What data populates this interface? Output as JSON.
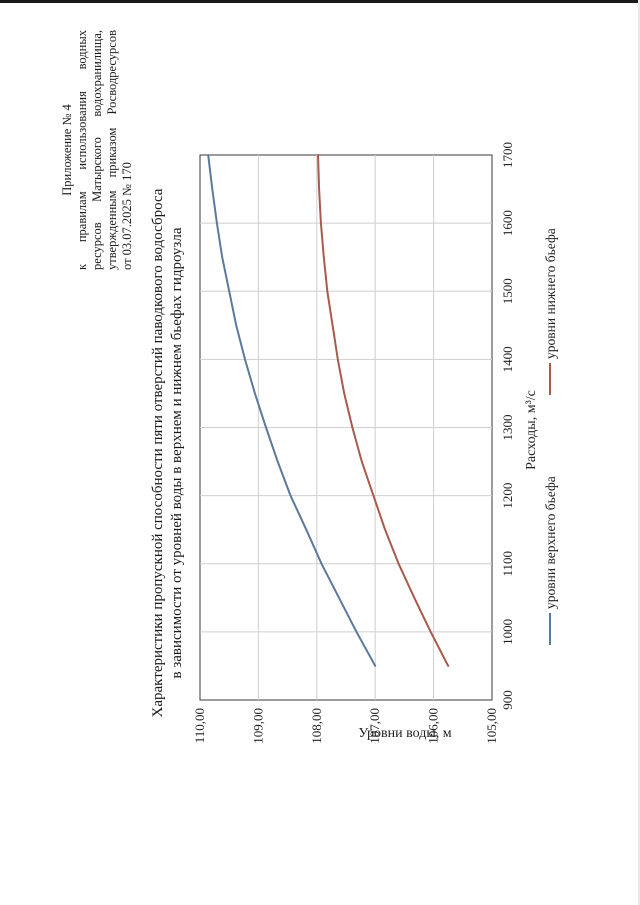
{
  "appendix": {
    "title": "Приложение № 4",
    "line1": "к правилам использования водных",
    "line2": "ресурсов Матырского водохранилища,",
    "line3": "утвержденным приказом Росводресурсов",
    "line4": "от 03.07.2025 № 170"
  },
  "colors": {
    "upper": "#5b7a9b",
    "lower": "#a85a4c",
    "grid": "#cfcfcf"
  },
  "chart_data": {
    "type": "line",
    "title_line1": "Характеристики пропускной способности пяти отверстий паводкового водосброса",
    "title_line2": "в зависимости от уровней воды в верхнем и нижнем бьефах гидроузла",
    "xlabel": "Расходы, м³/с",
    "ylabel": "Уровни воды, м",
    "xlim": [
      900,
      1700
    ],
    "ylim": [
      105,
      110
    ],
    "xticks": [
      "900",
      "1000",
      "1100",
      "1200",
      "1300",
      "1400",
      "1500",
      "1600",
      "1700"
    ],
    "yticks": [
      "105,00",
      "106,00",
      "107,00",
      "108,00",
      "109,00",
      "110,00"
    ],
    "grid": true,
    "legend_position": "bottom",
    "series": [
      {
        "name": "уровни верхнего бьефа",
        "x": [
          950,
          1000,
          1050,
          1100,
          1150,
          1200,
          1250,
          1300,
          1350,
          1400,
          1450,
          1500,
          1550,
          1600,
          1650,
          1700
        ],
        "y": [
          107.0,
          107.32,
          107.62,
          107.92,
          108.18,
          108.45,
          108.67,
          108.87,
          109.06,
          109.23,
          109.38,
          109.5,
          109.62,
          109.71,
          109.79,
          109.86
        ]
      },
      {
        "name": "уровни нижнего бьефа",
        "x": [
          950,
          1000,
          1050,
          1100,
          1150,
          1200,
          1250,
          1300,
          1350,
          1400,
          1450,
          1500,
          1550,
          1600,
          1650,
          1700
        ],
        "y": [
          105.75,
          106.05,
          106.33,
          106.6,
          106.83,
          107.03,
          107.23,
          107.39,
          107.53,
          107.64,
          107.73,
          107.82,
          107.88,
          107.93,
          107.96,
          107.98
        ]
      }
    ]
  }
}
